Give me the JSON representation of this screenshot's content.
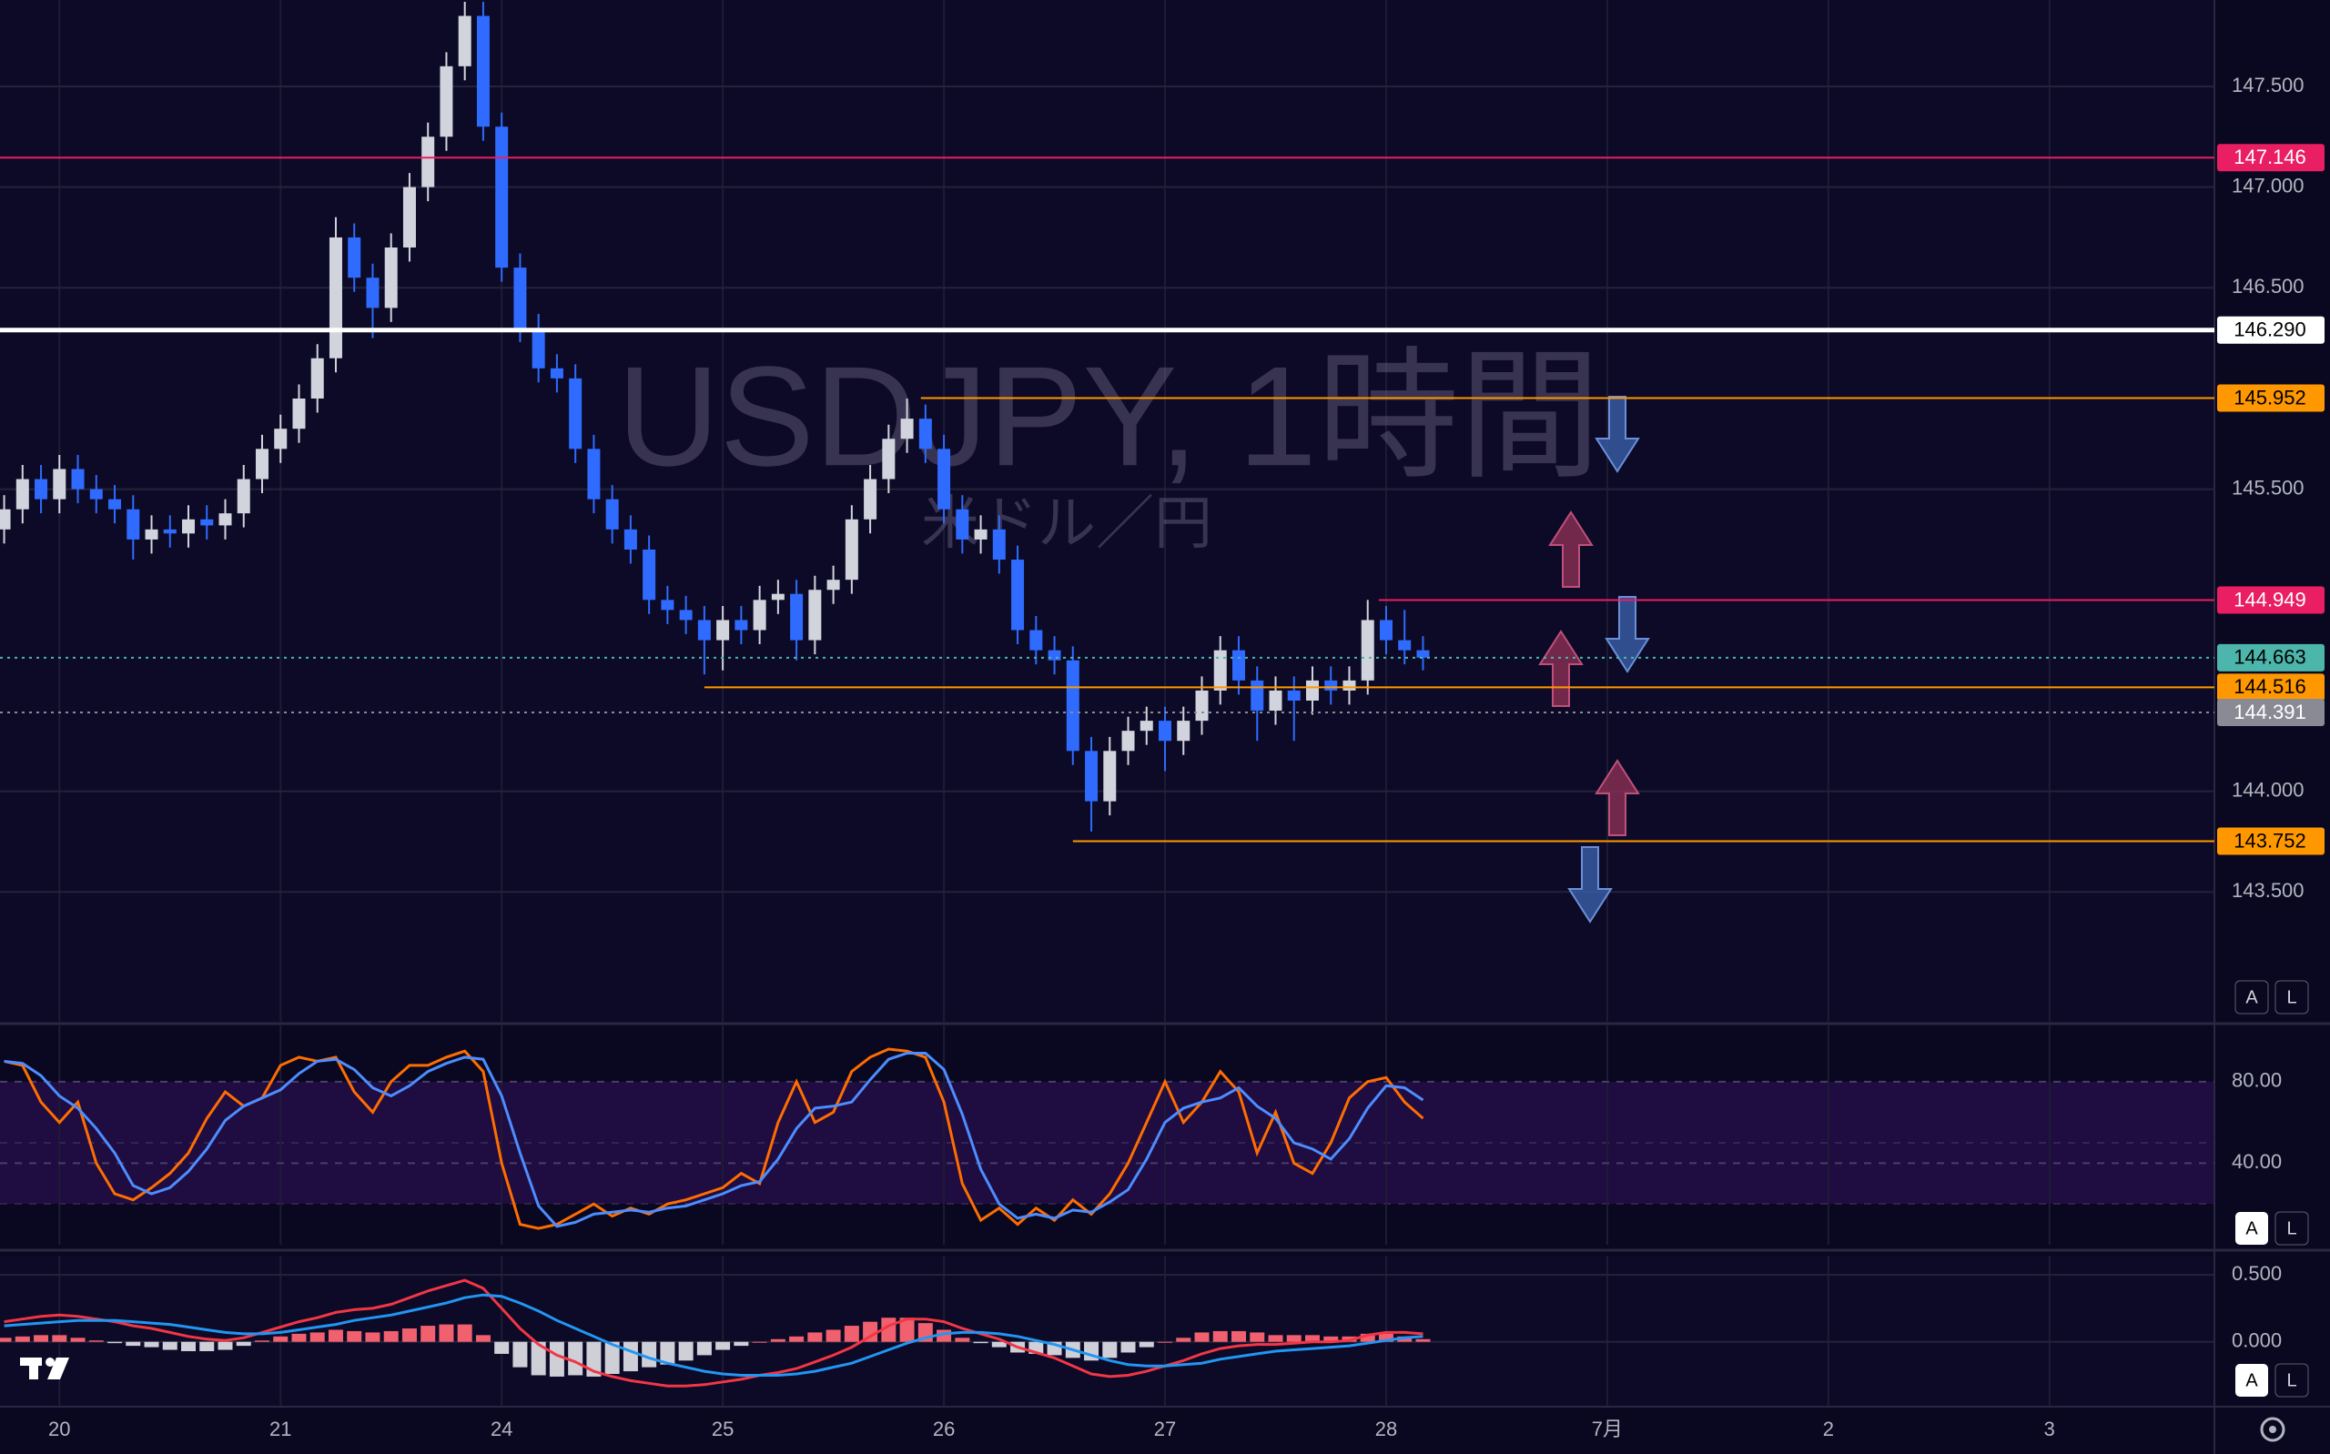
{
  "chart_data": [
    {
      "type": "candlestick",
      "title": "USDJPY, 1時間",
      "subtitle": "米ドル／円",
      "x": [
        -6,
        -4,
        -2,
        0,
        2,
        4,
        6,
        8,
        10,
        12,
        14,
        16,
        18,
        20,
        22,
        24,
        26,
        28,
        30,
        32,
        34,
        36,
        38,
        40,
        42,
        44,
        46,
        48,
        50,
        52,
        54,
        56,
        58,
        60,
        62,
        64,
        66,
        68,
        70,
        72,
        74,
        76,
        78,
        80,
        82,
        84,
        86,
        88,
        90,
        92,
        94,
        96,
        98,
        100,
        102,
        104,
        106,
        108,
        110,
        112,
        114,
        116,
        118,
        120,
        122,
        124,
        126,
        128,
        130,
        132,
        134,
        136,
        138,
        140,
        142,
        144,
        146,
        148
      ],
      "open": [
        145.3,
        145.4,
        145.55,
        145.45,
        145.6,
        145.5,
        145.45,
        145.4,
        145.25,
        145.3,
        145.28,
        145.35,
        145.32,
        145.38,
        145.55,
        145.7,
        145.8,
        145.95,
        146.15,
        146.75,
        146.55,
        146.4,
        146.7,
        147.0,
        147.25,
        147.6,
        147.85,
        147.3,
        146.6,
        146.3,
        146.1,
        146.05,
        145.7,
        145.45,
        145.3,
        145.2,
        144.95,
        144.9,
        144.85,
        144.75,
        144.85,
        144.8,
        144.95,
        144.98,
        144.75,
        145.0,
        145.05,
        145.35,
        145.55,
        145.75,
        145.85,
        145.7,
        145.4,
        145.25,
        145.3,
        145.15,
        144.8,
        144.7,
        144.65,
        144.2,
        143.95,
        144.2,
        144.3,
        144.35,
        144.25,
        144.35,
        144.5,
        144.7,
        144.55,
        144.4,
        144.5,
        144.45,
        144.55,
        144.5,
        144.55,
        144.85,
        144.75,
        144.7
      ],
      "high": [
        145.47,
        145.62,
        145.62,
        145.67,
        145.67,
        145.57,
        145.52,
        145.47,
        145.37,
        145.37,
        145.42,
        145.42,
        145.45,
        145.62,
        145.77,
        145.87,
        146.02,
        146.22,
        146.85,
        146.82,
        146.62,
        146.77,
        147.07,
        147.32,
        147.67,
        147.92,
        147.92,
        147.37,
        146.67,
        146.37,
        146.17,
        146.12,
        145.77,
        145.52,
        145.37,
        145.27,
        145.02,
        144.97,
        144.92,
        144.92,
        144.92,
        145.02,
        145.05,
        145.05,
        145.07,
        145.12,
        145.42,
        145.62,
        145.82,
        145.95,
        145.92,
        145.77,
        145.47,
        145.37,
        145.37,
        145.22,
        144.87,
        144.77,
        144.72,
        144.27,
        144.27,
        144.37,
        144.42,
        144.42,
        144.42,
        144.57,
        144.77,
        144.77,
        144.62,
        144.57,
        144.57,
        144.62,
        144.62,
        144.62,
        144.95,
        144.92,
        144.9,
        144.77
      ],
      "low": [
        145.23,
        145.33,
        145.38,
        145.38,
        145.43,
        145.38,
        145.33,
        145.15,
        145.18,
        145.21,
        145.21,
        145.25,
        145.25,
        145.31,
        145.48,
        145.63,
        145.73,
        145.88,
        146.08,
        146.48,
        146.25,
        146.33,
        146.63,
        146.93,
        147.18,
        147.53,
        147.23,
        146.53,
        146.23,
        146.03,
        145.98,
        145.63,
        145.38,
        145.23,
        145.13,
        144.88,
        144.83,
        144.78,
        144.58,
        144.6,
        144.73,
        144.73,
        144.88,
        144.65,
        144.68,
        144.93,
        144.98,
        145.28,
        145.48,
        145.68,
        145.63,
        145.33,
        145.18,
        145.18,
        145.08,
        144.73,
        144.63,
        144.58,
        144.13,
        143.8,
        143.88,
        144.13,
        144.23,
        144.1,
        144.18,
        144.28,
        144.43,
        144.48,
        144.25,
        144.33,
        144.25,
        144.38,
        144.43,
        144.43,
        144.48,
        144.68,
        144.63,
        144.6
      ],
      "close": [
        145.4,
        145.55,
        145.45,
        145.6,
        145.5,
        145.45,
        145.4,
        145.25,
        145.3,
        145.28,
        145.35,
        145.32,
        145.38,
        145.55,
        145.7,
        145.8,
        145.95,
        146.15,
        146.75,
        146.55,
        146.4,
        146.7,
        147.0,
        147.25,
        147.6,
        147.85,
        147.3,
        146.6,
        146.3,
        146.1,
        146.05,
        145.7,
        145.45,
        145.3,
        145.2,
        144.95,
        144.9,
        144.85,
        144.75,
        144.85,
        144.8,
        144.95,
        144.98,
        144.75,
        145.0,
        145.05,
        145.35,
        145.55,
        145.75,
        145.85,
        145.7,
        145.4,
        145.25,
        145.3,
        145.15,
        144.8,
        144.7,
        144.65,
        144.2,
        143.95,
        144.2,
        144.3,
        144.35,
        144.25,
        144.35,
        144.5,
        144.7,
        144.55,
        144.4,
        144.5,
        144.45,
        144.55,
        144.5,
        144.55,
        144.85,
        144.75,
        144.7,
        144.663
      ],
      "up_color": "#d1d4dc",
      "down_color": "#2f6bff",
      "xlim": [
        -6.45,
        233.9
      ],
      "xticks": [
        {
          "value": 0,
          "label": "20"
        },
        {
          "value": 24,
          "label": "21"
        },
        {
          "value": 48,
          "label": "24"
        },
        {
          "value": 72,
          "label": "25"
        },
        {
          "value": 96,
          "label": "26"
        },
        {
          "value": 120,
          "label": "27"
        },
        {
          "value": 144,
          "label": "28"
        },
        {
          "value": 168,
          "label": "7月"
        },
        {
          "value": 192,
          "label": "2"
        },
        {
          "value": 216,
          "label": "3"
        }
      ],
      "ylim": [
        142.855,
        147.929
      ],
      "yticks": [
        {
          "value": 143.5,
          "label": "143.500"
        },
        {
          "value": 144,
          "label": "144.000"
        },
        {
          "value": 145.5,
          "label": "145.500"
        },
        {
          "value": 146.5,
          "label": "146.500"
        },
        {
          "value": 147,
          "label": "147.000"
        },
        {
          "value": 147.5,
          "label": "147.500"
        }
      ],
      "grid": true,
      "levels": [
        {
          "value": 147.146,
          "label": "147.146",
          "color": "#e91e63",
          "text_color": "#ffffff",
          "style": "solid"
        },
        {
          "value": 146.29,
          "label": "146.290",
          "color": "#ffffff",
          "text_color": "#000000",
          "style": "thick"
        },
        {
          "value": 145.952,
          "label": "145.952",
          "color": "#ff9800",
          "text_color": "#000000",
          "style": "solid",
          "from": 93.5
        },
        {
          "value": 144.949,
          "label": "144.949",
          "color": "#e91e63",
          "text_color": "#ffffff",
          "style": "solid",
          "from": 143.2
        },
        {
          "value": 144.663,
          "label": "144.663",
          "color": "#4db6ac",
          "text_color": "#000000",
          "style": "dotted"
        },
        {
          "value": 144.516,
          "label": "144.516",
          "color": "#ff9800",
          "text_color": "#000000",
          "style": "solid",
          "from": 70
        },
        {
          "value": 144.391,
          "label": "144.391",
          "color": "#8a8a95",
          "text_color": "#ffffff",
          "style": "dotted"
        },
        {
          "value": 143.752,
          "label": "143.752",
          "color": "#ff9800",
          "text_color": "#000000",
          "style": "solid",
          "from": 110
        }
      ]
    },
    {
      "type": "line",
      "x": [
        -6,
        -4,
        -2,
        0,
        2,
        4,
        6,
        8,
        10,
        12,
        14,
        16,
        18,
        20,
        22,
        24,
        26,
        28,
        30,
        32,
        34,
        36,
        38,
        40,
        42,
        44,
        46,
        48,
        50,
        52,
        54,
        56,
        58,
        60,
        62,
        64,
        66,
        68,
        70,
        72,
        74,
        76,
        78,
        80,
        82,
        84,
        86,
        88,
        90,
        92,
        94,
        96,
        98,
        100,
        102,
        104,
        106,
        108,
        110,
        112,
        114,
        116,
        118,
        120,
        122,
        124,
        126,
        128,
        130,
        132,
        134,
        136,
        138,
        140,
        142,
        144,
        146,
        148
      ],
      "xlim": [
        -6.45,
        233.9
      ],
      "ylim": [
        0,
        107.6
      ],
      "yticks": [
        {
          "value": 40,
          "label": "40.00"
        },
        {
          "value": 80,
          "label": "80.00"
        }
      ],
      "series": [
        {
          "color": "#ff6d00",
          "values": [
            90,
            88,
            70,
            60,
            70,
            40,
            25,
            22,
            28,
            35,
            45,
            62,
            75,
            68,
            72,
            88,
            92,
            90,
            92,
            75,
            65,
            80,
            88,
            88,
            92,
            95,
            85,
            40,
            10,
            8,
            10,
            15,
            20,
            14,
            18,
            15,
            20,
            22,
            25,
            28,
            35,
            30,
            60,
            80,
            60,
            65,
            85,
            92,
            96,
            95,
            92,
            70,
            30,
            12,
            18,
            10,
            18,
            12,
            22,
            15,
            25,
            40,
            60,
            80,
            60,
            70,
            85,
            75,
            45,
            65,
            40,
            35,
            50,
            72,
            80,
            82,
            70,
            62
          ]
        },
        {
          "color": "#4c8dff",
          "values": [
            90,
            89,
            83,
            73,
            67,
            57,
            45,
            29,
            25,
            28,
            36,
            47,
            61,
            68,
            72,
            76,
            84,
            90,
            91,
            86,
            77,
            73,
            78,
            85,
            89,
            92,
            91,
            73,
            45,
            19,
            9,
            11,
            15,
            16,
            17,
            16,
            18,
            19,
            22,
            25,
            29,
            31,
            42,
            57,
            67,
            68,
            70,
            81,
            91,
            94,
            94,
            86,
            64,
            37,
            20,
            13,
            15,
            13,
            17,
            16,
            21,
            27,
            42,
            60,
            67,
            70,
            72,
            77,
            68,
            62,
            50,
            47,
            42,
            52,
            67,
            78,
            77,
            71
          ]
        }
      ]
    },
    {
      "type": "line",
      "x": [
        -6,
        -4,
        -2,
        0,
        2,
        4,
        6,
        8,
        10,
        12,
        14,
        16,
        18,
        20,
        22,
        24,
        26,
        28,
        30,
        32,
        34,
        36,
        38,
        40,
        42,
        44,
        46,
        48,
        50,
        52,
        54,
        56,
        58,
        60,
        62,
        64,
        66,
        68,
        70,
        72,
        74,
        76,
        78,
        80,
        82,
        84,
        86,
        88,
        90,
        92,
        94,
        96,
        98,
        100,
        102,
        104,
        106,
        108,
        110,
        112,
        114,
        116,
        118,
        120,
        122,
        124,
        126,
        128,
        130,
        132,
        134,
        136,
        138,
        140,
        142,
        144,
        146,
        148
      ],
      "xlim": [
        -6.45,
        233.9
      ],
      "ylim": [
        -0.478,
        0.644
      ],
      "yticks": [
        {
          "value": 0,
          "label": "0.000"
        },
        {
          "value": 0.5,
          "label": "0.500"
        }
      ],
      "histogram": {
        "up_color": "#f0606e",
        "down_color": "#cfcfd8",
        "values": [
          0.03,
          0.04,
          0.05,
          0.05,
          0.03,
          0.01,
          -0.01,
          -0.03,
          -0.04,
          -0.06,
          -0.07,
          -0.07,
          -0.06,
          -0.03,
          0.01,
          0.04,
          0.06,
          0.07,
          0.09,
          0.08,
          0.07,
          0.08,
          0.1,
          0.12,
          0.13,
          0.13,
          0.05,
          -0.09,
          -0.19,
          -0.25,
          -0.26,
          -0.25,
          -0.26,
          -0.24,
          -0.22,
          -0.19,
          -0.17,
          -0.14,
          -0.1,
          -0.06,
          -0.03,
          0.0,
          0.02,
          0.04,
          0.07,
          0.09,
          0.12,
          0.15,
          0.18,
          0.18,
          0.14,
          0.09,
          0.03,
          -0.01,
          -0.04,
          -0.08,
          -0.09,
          -0.1,
          -0.12,
          -0.14,
          -0.12,
          -0.08,
          -0.04,
          0.0,
          0.03,
          0.07,
          0.08,
          0.08,
          0.07,
          0.05,
          0.05,
          0.05,
          0.04,
          0.04,
          0.06,
          0.06,
          0.04,
          0.02
        ]
      },
      "series": [
        {
          "color": "#f23645",
          "values": [
            0.15,
            0.17,
            0.19,
            0.2,
            0.19,
            0.17,
            0.15,
            0.12,
            0.1,
            0.07,
            0.04,
            0.02,
            0.01,
            0.03,
            0.07,
            0.11,
            0.15,
            0.18,
            0.22,
            0.24,
            0.25,
            0.28,
            0.33,
            0.38,
            0.42,
            0.46,
            0.4,
            0.25,
            0.1,
            -0.02,
            -0.1,
            -0.15,
            -0.22,
            -0.26,
            -0.29,
            -0.31,
            -0.33,
            -0.33,
            -0.32,
            -0.3,
            -0.28,
            -0.25,
            -0.23,
            -0.2,
            -0.15,
            -0.1,
            -0.04,
            0.04,
            0.12,
            0.17,
            0.17,
            0.15,
            0.1,
            0.06,
            0.02,
            -0.04,
            -0.08,
            -0.12,
            -0.18,
            -0.24,
            -0.26,
            -0.25,
            -0.22,
            -0.18,
            -0.14,
            -0.09,
            -0.05,
            -0.03,
            -0.02,
            -0.02,
            -0.01,
            0.0,
            0.0,
            0.01,
            0.05,
            0.07,
            0.07,
            0.06
          ]
        },
        {
          "color": "#2196f3",
          "values": [
            0.12,
            0.13,
            0.14,
            0.15,
            0.16,
            0.16,
            0.16,
            0.15,
            0.14,
            0.13,
            0.11,
            0.09,
            0.07,
            0.06,
            0.06,
            0.07,
            0.09,
            0.11,
            0.13,
            0.16,
            0.18,
            0.2,
            0.23,
            0.26,
            0.29,
            0.33,
            0.35,
            0.34,
            0.29,
            0.23,
            0.16,
            0.1,
            0.04,
            -0.02,
            -0.07,
            -0.12,
            -0.16,
            -0.19,
            -0.22,
            -0.24,
            -0.25,
            -0.25,
            -0.25,
            -0.24,
            -0.22,
            -0.19,
            -0.16,
            -0.11,
            -0.06,
            -0.01,
            0.03,
            0.06,
            0.07,
            0.07,
            0.06,
            0.04,
            0.01,
            -0.02,
            -0.06,
            -0.1,
            -0.14,
            -0.17,
            -0.18,
            -0.18,
            -0.17,
            -0.16,
            -0.13,
            -0.11,
            -0.09,
            -0.07,
            -0.06,
            -0.05,
            -0.04,
            -0.03,
            -0.01,
            0.01,
            0.03,
            0.04
          ]
        }
      ]
    }
  ],
  "ui": {
    "auto": "A",
    "log": "L"
  }
}
